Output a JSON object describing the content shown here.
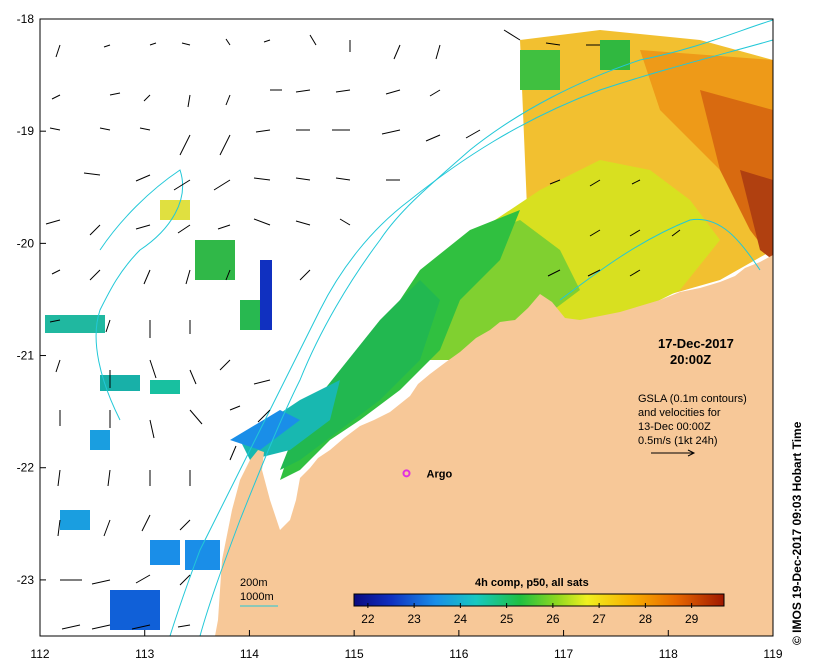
{
  "map": {
    "lon_ticks": [
      "112",
      "113",
      "114",
      "115",
      "116",
      "117",
      "118",
      "119"
    ],
    "lat_ticks": [
      "-18",
      "-19",
      "-20",
      "-21",
      "-22",
      "-23"
    ],
    "lon_range": [
      112,
      119
    ],
    "lat_range": [
      -18,
      -23.5
    ],
    "land_color": "#f7c898",
    "contour_color": "#22c8d8"
  },
  "annotation": {
    "date": "17-Dec-2017",
    "time": "20:00Z",
    "gsla_lines": [
      "GSLA (0.1m contours)",
      "and velocities for",
      "13-Dec 00:00Z",
      "0.5m/s (1kt 24h)"
    ]
  },
  "argo": {
    "label": "Argo",
    "lon": 115.5,
    "lat": -22.05,
    "color": "#e030e0"
  },
  "legend": {
    "isobath_200": "200m",
    "isobath_1000": "1000m"
  },
  "colorbar": {
    "title": "4h comp, p50, all sats",
    "ticks": [
      "22",
      "23",
      "24",
      "25",
      "26",
      "27",
      "28",
      "29"
    ],
    "range": [
      21.7,
      29.7
    ]
  },
  "credit": "© IMOS 19-Dec-2017 09:03 Hobart Time"
}
